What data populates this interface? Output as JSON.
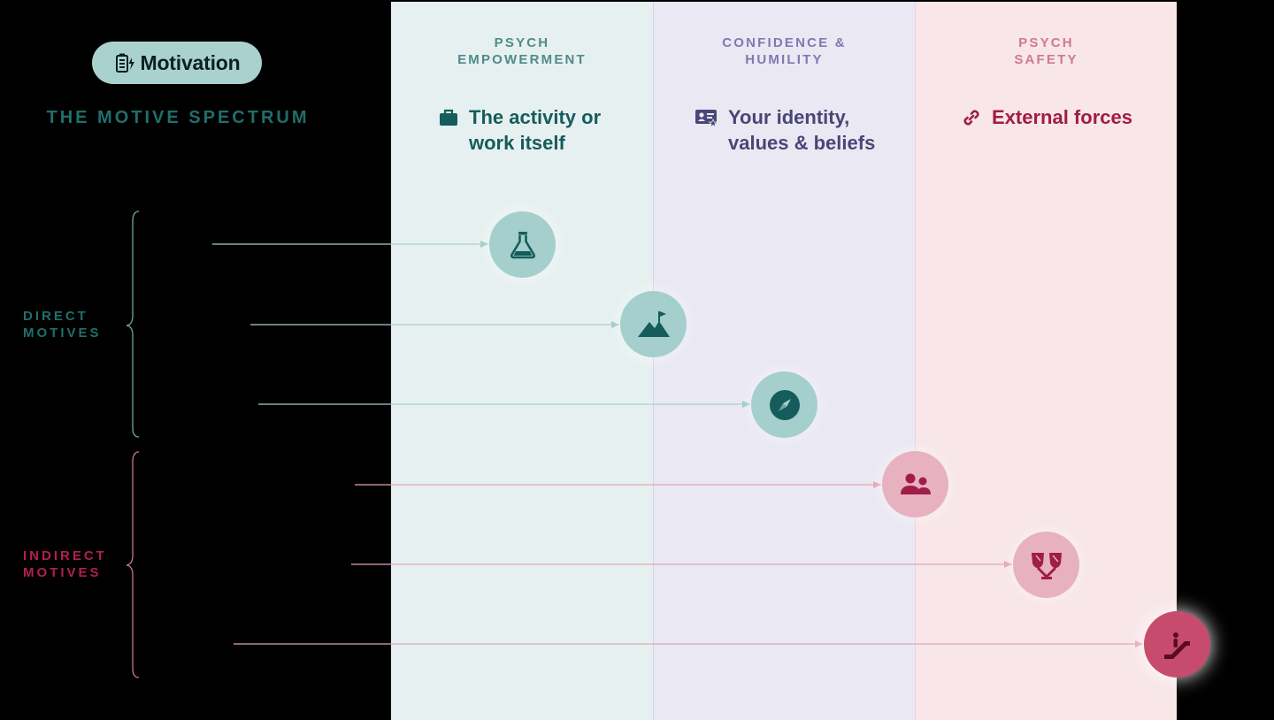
{
  "header": {
    "pill_label": "Motivation",
    "spectrum_title": "THE MOTIVE SPECTRUM"
  },
  "columns": [
    {
      "title": "PSYCH\nEMPOWERMENT",
      "heading": "The activity or\nwork itself",
      "icon": "briefcase-icon"
    },
    {
      "title": "CONFIDENCE &\nHUMILITY",
      "heading": "Your identity,\nvalues & beliefs",
      "icon": "id-card-icon"
    },
    {
      "title": "PSYCH\nSAFETY",
      "heading": "External forces",
      "icon": "link-icon"
    }
  ],
  "groups": {
    "direct": "DIRECT\nMOTIVES",
    "indirect": "INDIRECT\nMOTIVES"
  },
  "motives": [
    {
      "group": "direct",
      "icon": "flask-icon"
    },
    {
      "group": "direct",
      "icon": "mountain-flag-icon"
    },
    {
      "group": "direct",
      "icon": "compass-icon"
    },
    {
      "group": "indirect",
      "icon": "people-icon"
    },
    {
      "group": "indirect",
      "icon": "broken-trophy-icon"
    },
    {
      "group": "indirect",
      "icon": "escalator-icon"
    }
  ],
  "colors": {
    "direct_accent": "#1f6f6c",
    "indirect_accent": "#b21f53",
    "direct_line": "#a9cfcc",
    "indirect_line": "#e2a5b5"
  }
}
